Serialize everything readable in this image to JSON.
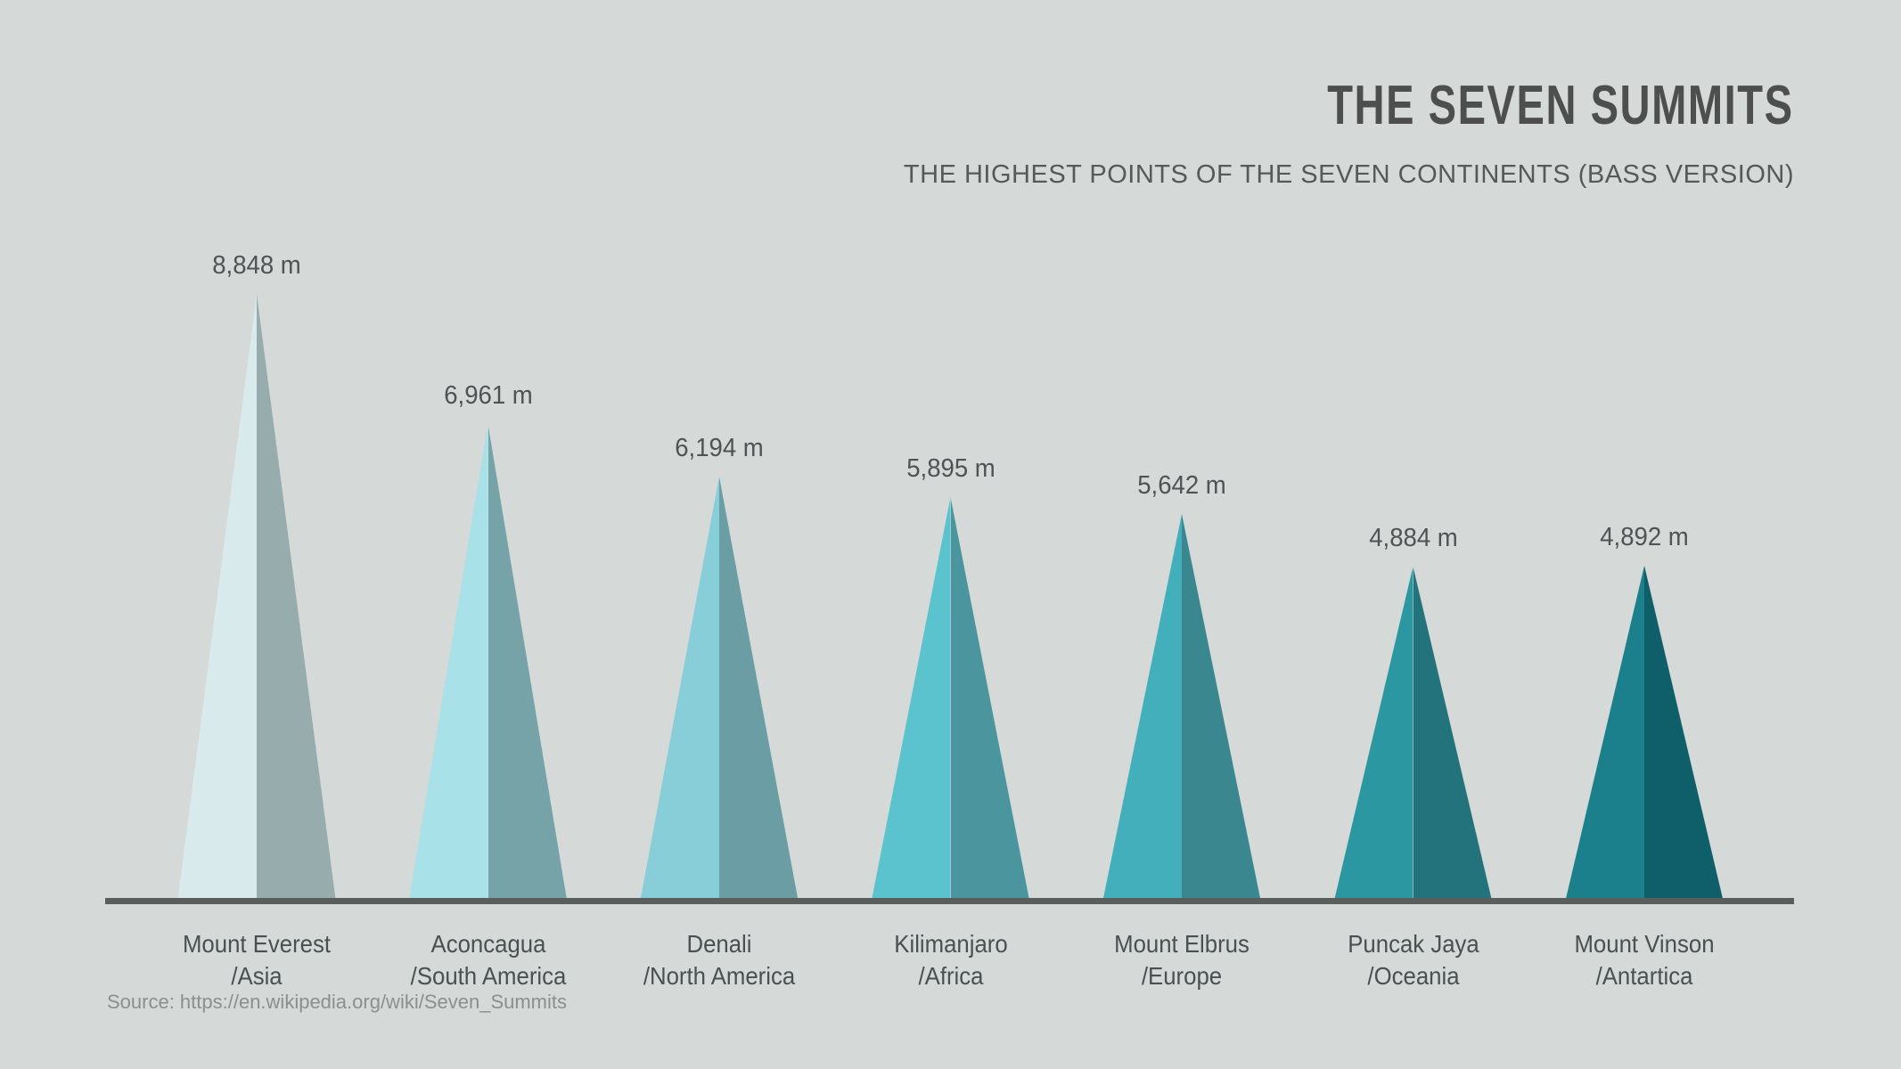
{
  "header": {
    "title": "THE SEVEN SUMMITS",
    "subtitle": "THE HIGHEST POINTS OF THE SEVEN CONTINENTS (BASS VERSION)"
  },
  "source_note": "Source: https://en.wikipedia.org/wiki/Seven_Summits",
  "colors": {
    "background": "#d5d9d7",
    "axis": "#5a5d5c",
    "title_text": "#4c4f4e",
    "subtitle_text": "#555a59",
    "value_label_text": "#4e5354",
    "name_label_text": "#495052",
    "source_text": "#8b908f"
  },
  "chart_data": {
    "type": "bar",
    "shape": "triangle-peaks",
    "title": "THE SEVEN SUMMITS",
    "subtitle": "THE HIGHEST POINTS OF THE SEVEN CONTINENTS (BASS VERSION)",
    "unit": "m",
    "ylim": [
      0,
      8848
    ],
    "grid": false,
    "legend": false,
    "categories": [
      "Mount Everest",
      "Aconcagua",
      "Denali",
      "Kilimanjaro",
      "Mount Elbrus",
      "Puncak Jaya",
      "Mount Vinson"
    ],
    "values": [
      8848,
      6961,
      6194,
      5895,
      5642,
      4884,
      4892
    ],
    "mountains": [
      {
        "slug": "mount-everest",
        "name": "Mount Everest",
        "continent": "/Asia",
        "value_m": 8848,
        "value_label": "8,848 m",
        "color_left": "#d8eaeb",
        "color_right": "#97adad"
      },
      {
        "slug": "aconcagua",
        "name": "Aconcagua",
        "continent": "/South America",
        "value_m": 6961,
        "value_label": "6,961 m",
        "color_left": "#a9e1e8",
        "color_right": "#76a3a8"
      },
      {
        "slug": "denali",
        "name": "Denali",
        "continent": "/North America",
        "value_m": 6194,
        "value_label": "6,194 m",
        "color_left": "#87ced9",
        "color_right": "#6b9ea4"
      },
      {
        "slug": "kilimanjaro",
        "name": "Kilimanjaro",
        "continent": "/Africa",
        "value_m": 5895,
        "value_label": "5,895 m",
        "color_left": "#5bc3cd",
        "color_right": "#4b969e"
      },
      {
        "slug": "mount-elbrus",
        "name": "Mount Elbrus",
        "continent": "/Europe",
        "value_m": 5642,
        "value_label": "5,642 m",
        "color_left": "#43afbb",
        "color_right": "#3a8790"
      },
      {
        "slug": "puncak-jaya",
        "name": "Puncak Jaya",
        "continent": "/Oceania",
        "value_m": 4884,
        "value_label": "4,884 m",
        "color_left": "#2b97a1",
        "color_right": "#23737c"
      },
      {
        "slug": "mount-vinson",
        "name": "Mount Vinson",
        "continent": "/Antartica",
        "value_m": 4892,
        "value_label": "4,892 m",
        "color_left": "#1b808b",
        "color_right": "#0f5f6a"
      }
    ]
  }
}
